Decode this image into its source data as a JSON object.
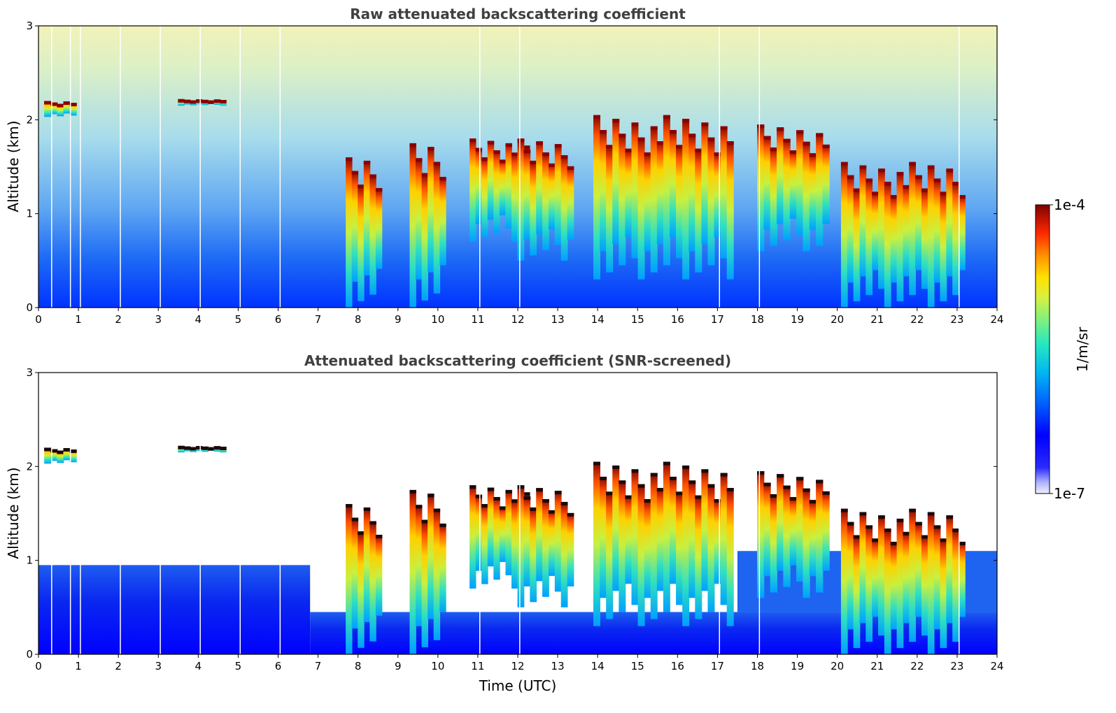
{
  "chart_data": [
    {
      "type": "heatmap",
      "title": "Raw attenuated backscattering coefficient",
      "xlabel": "",
      "ylabel": "Altitude (km)",
      "xlim": [
        0,
        24
      ],
      "ylim": [
        0,
        3
      ],
      "xticks": [
        0,
        1,
        2,
        3,
        4,
        5,
        6,
        7,
        8,
        9,
        10,
        11,
        12,
        13,
        14,
        15,
        16,
        17,
        18,
        19,
        20,
        21,
        22,
        23,
        24
      ],
      "yticks": [
        0,
        1,
        2,
        3
      ],
      "screened": false,
      "color_scale": "jet",
      "log_scale": true,
      "clouds": [
        {
          "x": [
            0.15,
            0.95
          ],
          "base": 2.03,
          "top": 2.2,
          "peak": "high"
        },
        {
          "x": [
            3.5,
            4.7
          ],
          "base": 2.15,
          "top": 2.22,
          "peak": "high"
        },
        {
          "x": [
            7.7,
            8.6
          ],
          "base": 0.0,
          "top": 1.6,
          "peak": "high"
        },
        {
          "x": [
            9.3,
            10.2
          ],
          "base": 0.0,
          "top": 1.75,
          "peak": "high"
        },
        {
          "x": [
            10.8,
            12.3
          ],
          "base": 0.7,
          "top": 1.8,
          "peak": "high"
        },
        {
          "x": [
            12.0,
            13.4
          ],
          "base": 0.5,
          "top": 1.8,
          "peak": "high"
        },
        {
          "x": [
            13.9,
            17.4
          ],
          "base": 0.3,
          "top": 2.05,
          "peak": "high"
        },
        {
          "x": [
            18.0,
            19.8
          ],
          "base": 0.6,
          "top": 1.95,
          "peak": "high"
        },
        {
          "x": [
            20.1,
            23.2
          ],
          "base": 0.0,
          "top": 1.55,
          "peak": "high"
        }
      ]
    },
    {
      "type": "heatmap",
      "title": "Attenuated backscattering coefficient (SNR-screened)",
      "xlabel": "Time (UTC)",
      "ylabel": "Altitude (km)",
      "xlim": [
        0,
        24
      ],
      "ylim": [
        0,
        3
      ],
      "xticks": [
        0,
        1,
        2,
        3,
        4,
        5,
        6,
        7,
        8,
        9,
        10,
        11,
        12,
        13,
        14,
        15,
        16,
        17,
        18,
        19,
        20,
        21,
        22,
        23,
        24
      ],
      "yticks": [
        0,
        1,
        2,
        3
      ],
      "screened": true,
      "color_scale": "jet",
      "log_scale": true
    }
  ],
  "colorbar": {
    "label": "1/m/sr",
    "max_label": "1e-4",
    "min_label": "1e-7",
    "range": [
      1e-07,
      0.0001
    ],
    "log_scale": true
  }
}
